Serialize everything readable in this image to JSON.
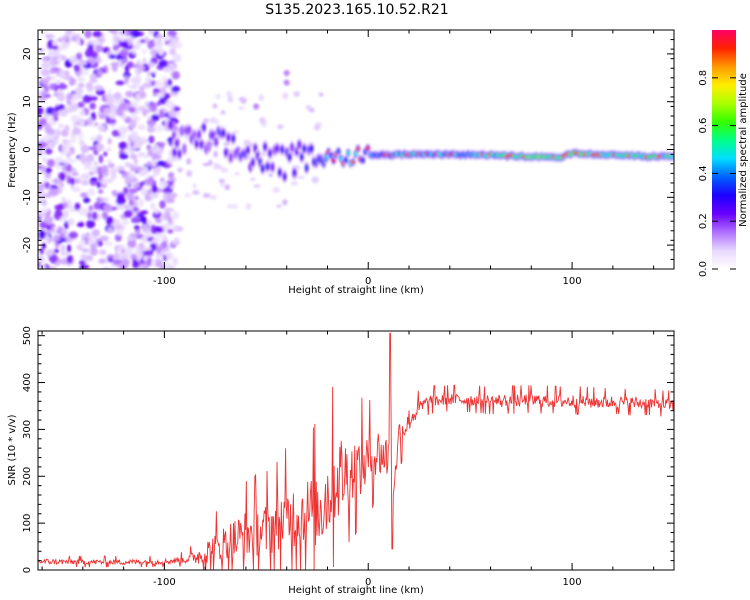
{
  "title": "S135.2023.165.10.52.R21",
  "chart_data": [
    {
      "type": "heatmap",
      "name": "spectrogram",
      "xlabel": "Height of straight line (km)",
      "ylabel": "Frequency (Hz)",
      "xlim": [
        -162,
        150
      ],
      "ylim": [
        -25,
        25
      ],
      "x_ticks": [
        -100,
        0,
        100
      ],
      "y_ticks": [
        -20,
        -10,
        0,
        10,
        20
      ],
      "colorbar": {
        "label": "Normalized spectral amplitude",
        "range": [
          0,
          1
        ],
        "ticks": [
          0.0,
          0.2,
          0.4,
          0.6,
          0.8
        ],
        "tick_labels": [
          "0.0",
          "0.2",
          "0.4",
          "0.6",
          "0.8"
        ],
        "colormap": [
          "#ffffff",
          "#e8d8ff",
          "#b070ff",
          "#6a00ff",
          "#1c00ff",
          "#0060ff",
          "#00ddff",
          "#00ff88",
          "#33ff00",
          "#aaff00",
          "#ffee00",
          "#ff9900",
          "#ff2200",
          "#ff0066"
        ]
      },
      "signal_trace": {
        "description_free": true,
        "x": [
          -95,
          -80,
          -70,
          -60,
          -50,
          -40,
          -30,
          -20,
          -10,
          0,
          10,
          20,
          40,
          60,
          80,
          95,
          100,
          110,
          120,
          135,
          150
        ],
        "freq": [
          1,
          2,
          0.5,
          -1,
          -2,
          -3,
          -1,
          -1.5,
          -1.5,
          -1,
          -1.2,
          -1,
          -1,
          -1.2,
          -1.5,
          -1.6,
          -0.8,
          -1,
          -1.2,
          -1.4,
          -1.5
        ],
        "amplitude": [
          0.25,
          0.25,
          0.3,
          0.32,
          0.35,
          0.3,
          0.38,
          0.5,
          0.55,
          0.5,
          0.55,
          0.6,
          0.55,
          0.6,
          0.75,
          0.7,
          0.8,
          0.7,
          0.65,
          0.7,
          0.6
        ]
      }
    },
    {
      "type": "line",
      "name": "snr",
      "xlabel": "Height of straight line (km)",
      "ylabel": "SNR (10 * v/v)",
      "xlim": [
        -162,
        150
      ],
      "ylim": [
        0,
        510
      ],
      "x_ticks": [
        -100,
        0,
        100
      ],
      "y_ticks": [
        0,
        100,
        200,
        300,
        400,
        500
      ],
      "series": [
        {
          "name": "SNR",
          "color": "#ee3333",
          "x": [
            -162,
            -140,
            -120,
            -100,
            -90,
            -85,
            -80,
            -70,
            -60,
            -50,
            -45,
            -40,
            -35,
            -30,
            -25,
            -20,
            -15,
            -10,
            -5,
            0,
            5,
            10,
            11,
            12,
            15,
            20,
            25,
            30,
            40,
            60,
            80,
            100,
            120,
            140,
            150
          ],
          "y": [
            18,
            17,
            17,
            18,
            22,
            28,
            35,
            55,
            75,
            85,
            95,
            110,
            115,
            120,
            125,
            160,
            200,
            205,
            215,
            235,
            250,
            240,
            360,
            150,
            285,
            320,
            345,
            360,
            365,
            360,
            362,
            360,
            358,
            355,
            352
          ],
          "noise_amplitude": [
            6,
            6,
            6,
            6,
            8,
            15,
            30,
            45,
            55,
            60,
            65,
            70,
            75,
            80,
            90,
            95,
            100,
            80,
            70,
            60,
            55,
            50,
            0,
            0,
            40,
            25,
            18,
            15,
            14,
            15,
            15,
            15,
            14,
            14,
            14
          ]
        }
      ],
      "annotations": [
        {
          "x": 10.5,
          "y": 505,
          "note": "spike"
        },
        {
          "x": 11.5,
          "y": 45,
          "note": "dip"
        }
      ]
    }
  ]
}
